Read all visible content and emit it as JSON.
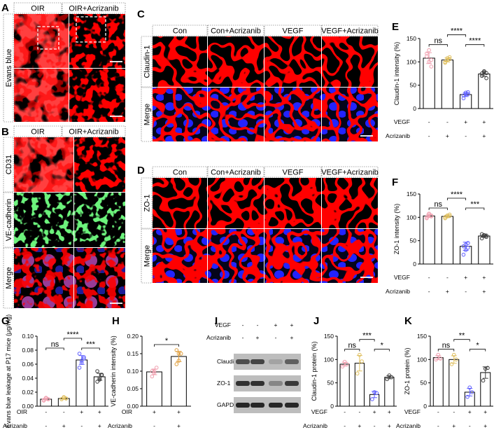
{
  "panel_letters": [
    "A",
    "B",
    "C",
    "D",
    "E",
    "F",
    "G",
    "H",
    "I",
    "J",
    "K"
  ],
  "panel_A": {
    "col_headers": [
      "OIR",
      "OIR+Acrizanib"
    ],
    "row_label": "Evans blue"
  },
  "panel_B": {
    "col_headers": [
      "OIR",
      "OIR+Acrizanib"
    ],
    "row_labels": [
      "CD31",
      "VE-cadherin",
      "Merge"
    ]
  },
  "panel_C": {
    "col_headers": [
      "Con",
      "Con+Acrizanib",
      "VEGF",
      "VEGF+Acrizanib"
    ],
    "row_labels": [
      "Claudin-1",
      "Merge"
    ]
  },
  "panel_D": {
    "col_headers": [
      "Con",
      "Con+Acrizanib",
      "VEGF",
      "VEGF+Acrizanib"
    ],
    "row_labels": [
      "ZO-1",
      "Merge"
    ]
  },
  "panel_I": {
    "cond_labels": [
      "VEGF",
      "Acrizanib"
    ],
    "cond_signs": [
      [
        "-",
        "-",
        "+",
        "+"
      ],
      [
        "-",
        "+",
        "-",
        "+"
      ]
    ],
    "bands": [
      {
        "label": "Claudin-1",
        "intensity": [
          0.7,
          0.75,
          0.25,
          0.6
        ]
      },
      {
        "label": "ZO-1",
        "intensity": [
          0.85,
          0.85,
          0.4,
          0.8
        ]
      },
      {
        "label": "GAPDH",
        "intensity": [
          0.9,
          0.9,
          0.9,
          0.9
        ]
      }
    ]
  },
  "chart_data": [
    {
      "panel": "E",
      "type": "bar",
      "ylabel": "Claudin-1 intensity (%)",
      "ylim": [
        0,
        150
      ],
      "yticks": [
        0,
        50,
        100,
        150
      ],
      "values": [
        108,
        104,
        30,
        74
      ],
      "points": [
        [
          118,
          100,
          90,
          112,
          125,
          104
        ],
        [
          100,
          108,
          110,
          98,
          104,
          106
        ],
        [
          22,
          30,
          35,
          28,
          34,
          31
        ],
        [
          70,
          80,
          65,
          75,
          78,
          76
        ]
      ],
      "bar_colors": [
        "#f0a0b0",
        "#e0c060",
        "#6060ff",
        "#404040"
      ],
      "cond_labels": [
        "VEGF",
        "Acrizanib"
      ],
      "cond_signs": [
        [
          "-",
          "-",
          "+",
          "+"
        ],
        [
          "-",
          "+",
          "-",
          "+"
        ]
      ],
      "sig": [
        {
          "from": 0,
          "to": 1,
          "text": "ns"
        },
        {
          "from": 1,
          "to": 2,
          "text": "****",
          "level": 2
        },
        {
          "from": 2,
          "to": 3,
          "text": "****"
        }
      ]
    },
    {
      "panel": "F",
      "type": "bar",
      "ylabel": "ZO-1 intensity (%)",
      "ylim": [
        0,
        150
      ],
      "yticks": [
        0,
        50,
        100,
        150
      ],
      "values": [
        103,
        102,
        38,
        60
      ],
      "points": [
        [
          100,
          106,
          102,
          98,
          108,
          104
        ],
        [
          100,
          104,
          106,
          98,
          102,
          103
        ],
        [
          20,
          30,
          45,
          38,
          42,
          35
        ],
        [
          55,
          62,
          58,
          64,
          60,
          61
        ]
      ],
      "bar_colors": [
        "#f0a0b0",
        "#e0c060",
        "#6060ff",
        "#404040"
      ],
      "cond_labels": [
        "VEGF",
        "Acrizanib"
      ],
      "cond_signs": [
        [
          "-",
          "-",
          "+",
          "+"
        ],
        [
          "-",
          "+",
          "-",
          "+"
        ]
      ],
      "sig": [
        {
          "from": 0,
          "to": 1,
          "text": "ns"
        },
        {
          "from": 1,
          "to": 2,
          "text": "****",
          "level": 2
        },
        {
          "from": 2,
          "to": 3,
          "text": "***"
        }
      ]
    },
    {
      "panel": "G",
      "type": "bar",
      "ylabel": "Evans blue leakage at P17 mice (μg/mg)",
      "ylim": [
        0,
        0.1
      ],
      "yticks": [
        0.0,
        0.02,
        0.04,
        0.06,
        0.08,
        0.1
      ],
      "values": [
        0.01,
        0.011,
        0.066,
        0.042
      ],
      "points": [
        [
          0.009,
          0.011,
          0.01,
          0.008,
          0.012,
          0.01
        ],
        [
          0.01,
          0.012,
          0.011,
          0.01,
          0.013,
          0.011
        ],
        [
          0.055,
          0.062,
          0.07,
          0.075,
          0.065,
          0.068
        ],
        [
          0.035,
          0.04,
          0.045,
          0.05,
          0.038,
          0.044
        ]
      ],
      "bar_colors": [
        "#f0a0b0",
        "#e0c060",
        "#6060ff",
        "#404040"
      ],
      "cond_labels": [
        "OIR",
        "Acrizanib"
      ],
      "cond_signs": [
        [
          "-",
          "-",
          "+",
          "+"
        ],
        [
          "-",
          "+",
          "-",
          "+"
        ]
      ],
      "sig": [
        {
          "from": 0,
          "to": 1,
          "text": "ns"
        },
        {
          "from": 1,
          "to": 2,
          "text": "****",
          "level": 2
        },
        {
          "from": 2,
          "to": 3,
          "text": "***"
        }
      ]
    },
    {
      "panel": "H",
      "type": "bar",
      "ylabel": "VE-cadherin intensity (%)",
      "ylim": [
        0,
        0.2
      ],
      "yticks": [
        0.0,
        0.05,
        0.1,
        0.15,
        0.2
      ],
      "values": [
        0.098,
        0.142
      ],
      "points": [
        [
          0.085,
          0.095,
          0.11,
          0.1,
          0.1
        ],
        [
          0.12,
          0.13,
          0.15,
          0.16,
          0.15
        ]
      ],
      "bar_colors": [
        "#f0a0b0",
        "#e0a040"
      ],
      "cond_labels": [
        "OIR",
        "Acrizanib"
      ],
      "cond_signs": [
        [
          "+",
          "+"
        ],
        [
          "-",
          "+"
        ]
      ],
      "sig": [
        {
          "from": 0,
          "to": 1,
          "text": "*"
        }
      ]
    },
    {
      "panel": "J",
      "type": "bar",
      "ylabel": "Claudin-1 protein (%)",
      "ylim": [
        0,
        150
      ],
      "yticks": [
        0,
        50,
        100,
        150
      ],
      "values": [
        90,
        92,
        25,
        62
      ],
      "points": [
        [
          85,
          95,
          90
        ],
        [
          70,
          110,
          96
        ],
        [
          15,
          30,
          28
        ],
        [
          58,
          66,
          62
        ]
      ],
      "bar_colors": [
        "#f0a0b0",
        "#e0c060",
        "#6060ff",
        "#404040"
      ],
      "cond_labels": [
        "VEGF",
        "Acrizanib"
      ],
      "cond_signs": [
        [
          "-",
          "-",
          "+",
          "+"
        ],
        [
          "-",
          "+",
          "-",
          "+"
        ]
      ],
      "sig": [
        {
          "from": 0,
          "to": 1,
          "text": "ns"
        },
        {
          "from": 1,
          "to": 2,
          "text": "***",
          "level": 2
        },
        {
          "from": 2,
          "to": 3,
          "text": "*"
        }
      ]
    },
    {
      "panel": "K",
      "type": "bar",
      "ylabel": "ZO-1 protein (%)",
      "ylim": [
        0,
        150
      ],
      "yticks": [
        0,
        50,
        100,
        150
      ],
      "values": [
        104,
        100,
        30,
        72
      ],
      "points": [
        [
          100,
          110,
          102
        ],
        [
          90,
          110,
          100
        ],
        [
          20,
          40,
          30
        ],
        [
          55,
          80,
          82
        ]
      ],
      "bar_colors": [
        "#f0a0b0",
        "#e0c060",
        "#6060ff",
        "#404040"
      ],
      "cond_labels": [
        "VEGF",
        "Acrizanib"
      ],
      "cond_signs": [
        [
          "-",
          "-",
          "+",
          "+"
        ],
        [
          "-",
          "+",
          "-",
          "+"
        ]
      ],
      "sig": [
        {
          "from": 0,
          "to": 1,
          "text": "ns"
        },
        {
          "from": 1,
          "to": 2,
          "text": "**",
          "level": 2
        },
        {
          "from": 2,
          "to": 3,
          "text": "*"
        }
      ]
    }
  ]
}
